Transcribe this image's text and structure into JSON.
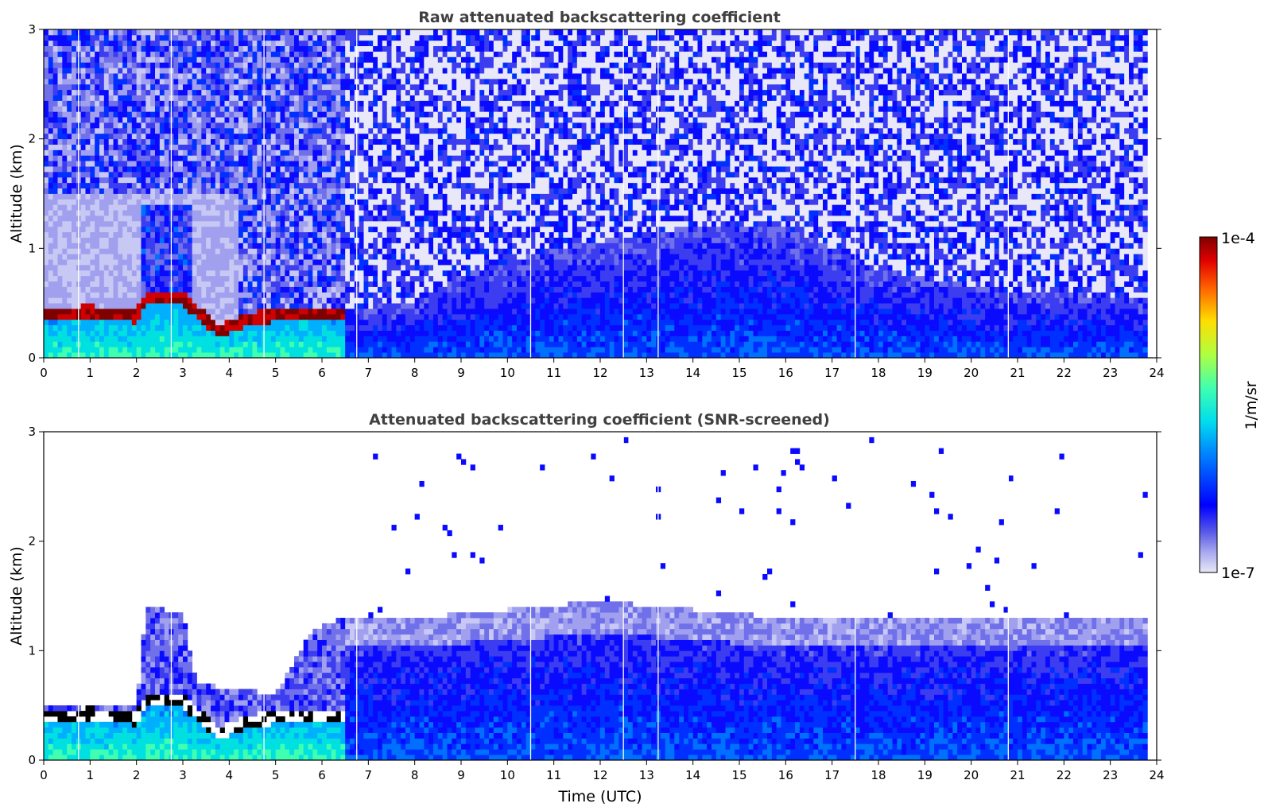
{
  "chart_data": [
    {
      "type": "heatmap",
      "title": "Raw attenuated backscattering coefficient",
      "xlabel": "",
      "ylabel": "Altitude (km)",
      "xlim": [
        0,
        24
      ],
      "ylim": [
        0,
        3
      ],
      "xticks": [
        "0",
        "1",
        "2",
        "3",
        "4",
        "5",
        "6",
        "7",
        "8",
        "9",
        "10",
        "11",
        "12",
        "13",
        "14",
        "15",
        "16",
        "17",
        "18",
        "19",
        "20",
        "21",
        "22",
        "23",
        "24"
      ],
      "yticks": [
        "0",
        "1",
        "2",
        "3"
      ],
      "screened": false,
      "data_gap_times_utc": [
        0.75,
        2.75,
        4.75,
        6.75,
        10.5,
        12.5,
        13.25,
        17.5,
        20.8
      ],
      "data_end_time_utc": 23.8,
      "features": {
        "aerosol_layer_top_km": [
          {
            "t": 0.0,
            "h": 0.45
          },
          {
            "t": 1.0,
            "h": 0.48
          },
          {
            "t": 2.0,
            "h": 0.44
          },
          {
            "t": 2.2,
            "h": 0.6
          },
          {
            "t": 3.0,
            "h": 0.6
          },
          {
            "t": 3.8,
            "h": 0.3
          },
          {
            "t": 4.3,
            "h": 0.4
          },
          {
            "t": 5.0,
            "h": 0.45
          },
          {
            "t": 6.4,
            "h": 0.45
          },
          {
            "t": 8.0,
            "h": 0.5
          },
          {
            "t": 9.0,
            "h": 0.75
          },
          {
            "t": 11.0,
            "h": 1.0
          },
          {
            "t": 14.0,
            "h": 1.2
          },
          {
            "t": 16.0,
            "h": 1.2
          },
          {
            "t": 18.0,
            "h": 0.8
          },
          {
            "t": 21.0,
            "h": 0.6
          },
          {
            "t": 23.8,
            "h": 0.55
          }
        ]
      }
    },
    {
      "type": "heatmap",
      "title": "Attenuated backscattering coefficient (SNR-screened)",
      "xlabel": "Time (UTC)",
      "ylabel": "Altitude (km)",
      "xlim": [
        0,
        24
      ],
      "ylim": [
        0,
        3
      ],
      "xticks": [
        "0",
        "1",
        "2",
        "3",
        "4",
        "5",
        "6",
        "7",
        "8",
        "9",
        "10",
        "11",
        "12",
        "13",
        "14",
        "15",
        "16",
        "17",
        "18",
        "19",
        "20",
        "21",
        "22",
        "23",
        "24"
      ],
      "yticks": [
        "0",
        "1",
        "2",
        "3"
      ],
      "screened": true,
      "data_gap_times_utc": [
        0.75,
        2.75,
        4.75,
        6.75,
        10.5,
        12.5,
        13.25,
        17.5,
        20.8
      ],
      "data_end_time_utc": 23.8,
      "features": {
        "screened_top_km": [
          {
            "t": 0.0,
            "h": 0.5
          },
          {
            "t": 2.0,
            "h": 0.5
          },
          {
            "t": 2.2,
            "h": 1.4
          },
          {
            "t": 3.0,
            "h": 1.35
          },
          {
            "t": 3.3,
            "h": 0.7
          },
          {
            "t": 5.0,
            "h": 0.6
          },
          {
            "t": 5.8,
            "h": 1.2
          },
          {
            "t": 6.5,
            "h": 1.3
          },
          {
            "t": 8.0,
            "h": 1.3
          },
          {
            "t": 12.0,
            "h": 1.45
          },
          {
            "t": 16.0,
            "h": 1.3
          },
          {
            "t": 23.8,
            "h": 1.3
          }
        ]
      }
    }
  ],
  "colorbar": {
    "label": "1/m/sr",
    "max_label": "1e-4",
    "min_label": "1e-7",
    "colormap": "jet",
    "scale": "log",
    "range": [
      1e-07,
      0.0001
    ]
  },
  "colors": {
    "title": "#404040",
    "axis": "#000000",
    "gap": "#ffffff"
  }
}
